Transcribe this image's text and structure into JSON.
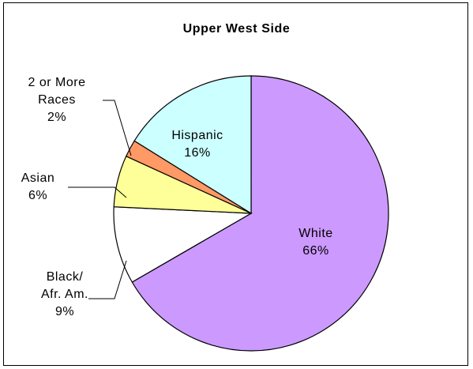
{
  "chart_data": {
    "type": "pie",
    "title": "Upper West Side",
    "slices": [
      {
        "label_lines": [
          "White",
          "66%"
        ],
        "value": 66,
        "color": "#CC99FF"
      },
      {
        "label_lines": [
          "Black/",
          "Afr. Am.",
          "9%"
        ],
        "value": 9,
        "color": "#FFFFFF"
      },
      {
        "label_lines": [
          "Asian",
          "6%"
        ],
        "value": 6,
        "color": "#FFFF99"
      },
      {
        "label_lines": [
          "2 or More",
          "Races",
          "2%"
        ],
        "value": 2,
        "color": "#FF9966"
      },
      {
        "label_lines": [
          "Hispanic",
          "16%"
        ],
        "value": 16,
        "color": "#CCFFFF"
      }
    ]
  }
}
